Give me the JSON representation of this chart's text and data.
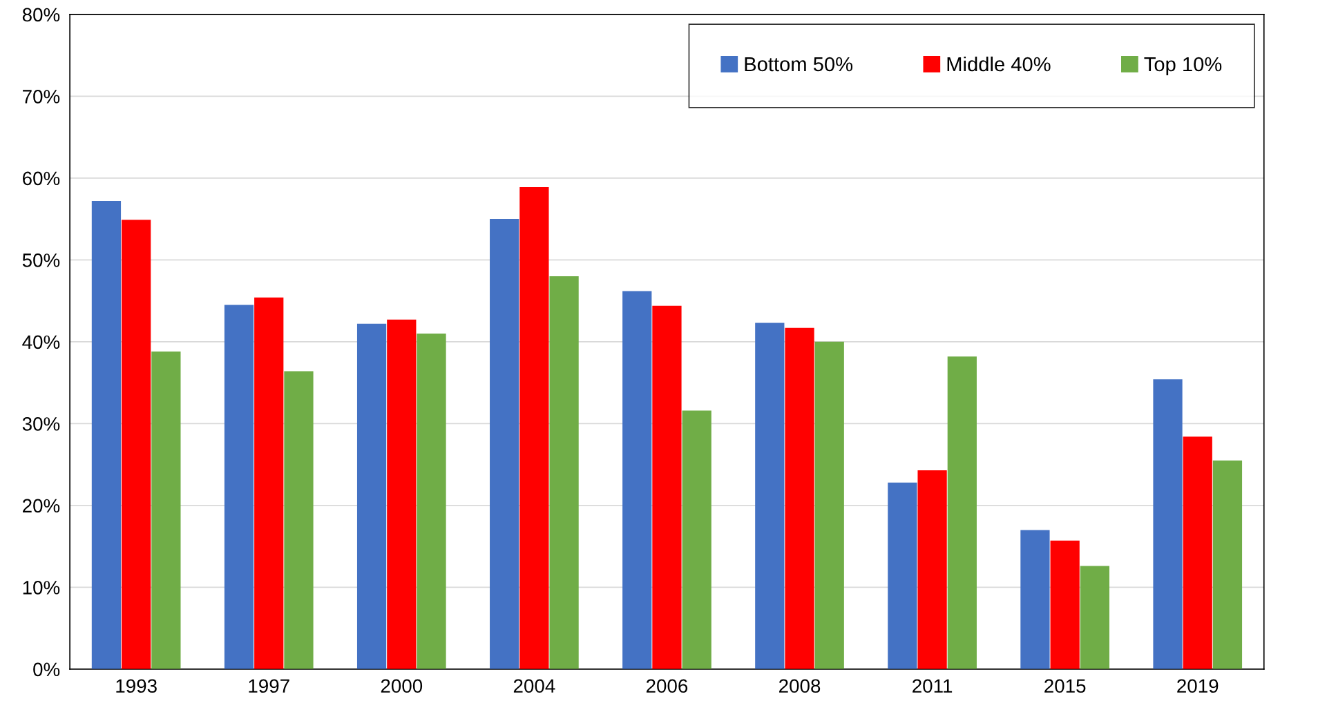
{
  "chart_data": {
    "type": "bar",
    "categories": [
      "1993",
      "1997",
      "2000",
      "2004",
      "2006",
      "2008",
      "2011",
      "2015",
      "2019"
    ],
    "series": [
      {
        "name": "Bottom 50%",
        "color": "#4472c4",
        "values": [
          57.2,
          44.5,
          42.2,
          55.0,
          46.2,
          42.3,
          22.8,
          17.0,
          35.4
        ]
      },
      {
        "name": "Middle 40%",
        "color": "#ff0000",
        "values": [
          54.9,
          45.4,
          42.7,
          58.9,
          44.4,
          41.7,
          24.3,
          15.7,
          28.4
        ]
      },
      {
        "name": "Top 10%",
        "color": "#70ad47",
        "values": [
          38.8,
          36.4,
          41.0,
          48.0,
          31.6,
          40.0,
          38.2,
          12.6,
          25.5
        ]
      }
    ],
    "ylim": [
      0,
      80
    ],
    "yticks": [
      {
        "value": 0,
        "label": "0%"
      },
      {
        "value": 10,
        "label": "10%"
      },
      {
        "value": 20,
        "label": "20%"
      },
      {
        "value": 30,
        "label": "30%"
      },
      {
        "value": 40,
        "label": "40%"
      },
      {
        "value": 50,
        "label": "50%"
      },
      {
        "value": 60,
        "label": "60%"
      },
      {
        "value": 70,
        "label": "70%"
      },
      {
        "value": 80,
        "label": "80%"
      }
    ],
    "grid": "y",
    "legend": "top right"
  }
}
